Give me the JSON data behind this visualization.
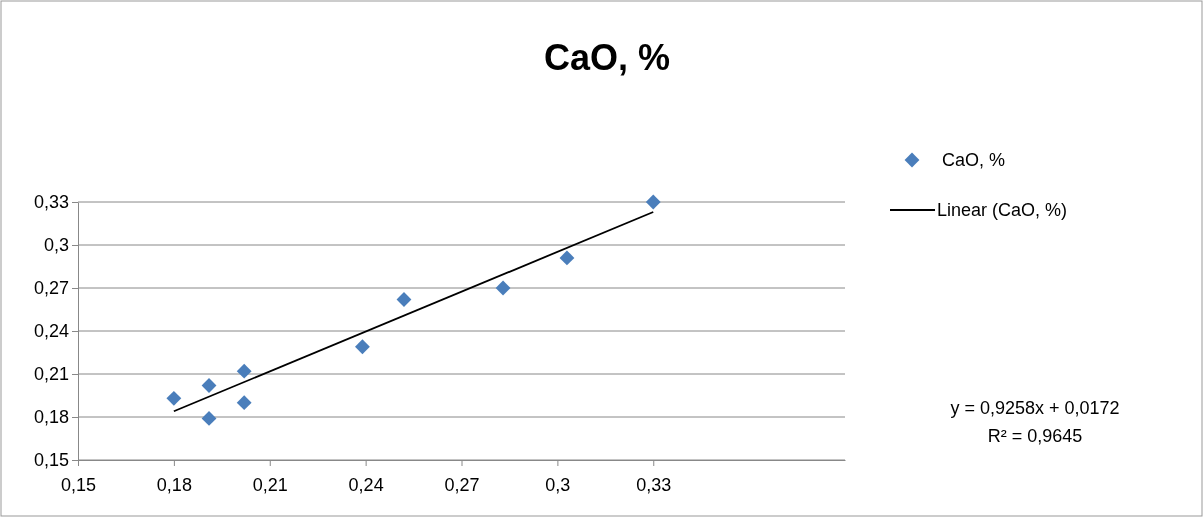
{
  "chart_data": {
    "type": "scatter",
    "title": "CaO, %",
    "series": [
      {
        "name": "CaO, %",
        "color": "#4a7ebb",
        "marker": "diamond",
        "x": [
          0.18,
          0.191,
          0.191,
          0.202,
          0.202,
          0.239,
          0.252,
          0.283,
          0.303,
          0.33
        ],
        "values": [
          0.193,
          0.202,
          0.179,
          0.212,
          0.19,
          0.229,
          0.262,
          0.27,
          0.291,
          0.33
        ]
      },
      {
        "name": "Linear (CaO, %)",
        "type": "line",
        "color": "#000000",
        "x": [
          0.18,
          0.33
        ],
        "values": [
          0.184,
          0.323
        ]
      }
    ],
    "xlim": [
      0.15,
      0.39
    ],
    "xticks": [
      {
        "value": 0.15,
        "label": "0,15"
      },
      {
        "value": 0.18,
        "label": "0,18"
      },
      {
        "value": 0.21,
        "label": "0,21"
      },
      {
        "value": 0.24,
        "label": "0,24"
      },
      {
        "value": 0.27,
        "label": "0,27"
      },
      {
        "value": 0.3,
        "label": "0,3"
      },
      {
        "value": 0.33,
        "label": "0,33"
      }
    ],
    "ylim": [
      0.15,
      0.33
    ],
    "yticks": [
      {
        "value": 0.15,
        "label": "0,15"
      },
      {
        "value": 0.18,
        "label": "0,18"
      },
      {
        "value": 0.21,
        "label": "0,21"
      },
      {
        "value": 0.24,
        "label": "0,24"
      },
      {
        "value": 0.27,
        "label": "0,27"
      },
      {
        "value": 0.3,
        "label": "0,3"
      },
      {
        "value": 0.33,
        "label": "0,33"
      }
    ],
    "grid": "y",
    "legend": "right",
    "annotations": [
      "y = 0,9258x + 0,0172",
      "R² = 0,9645"
    ]
  }
}
